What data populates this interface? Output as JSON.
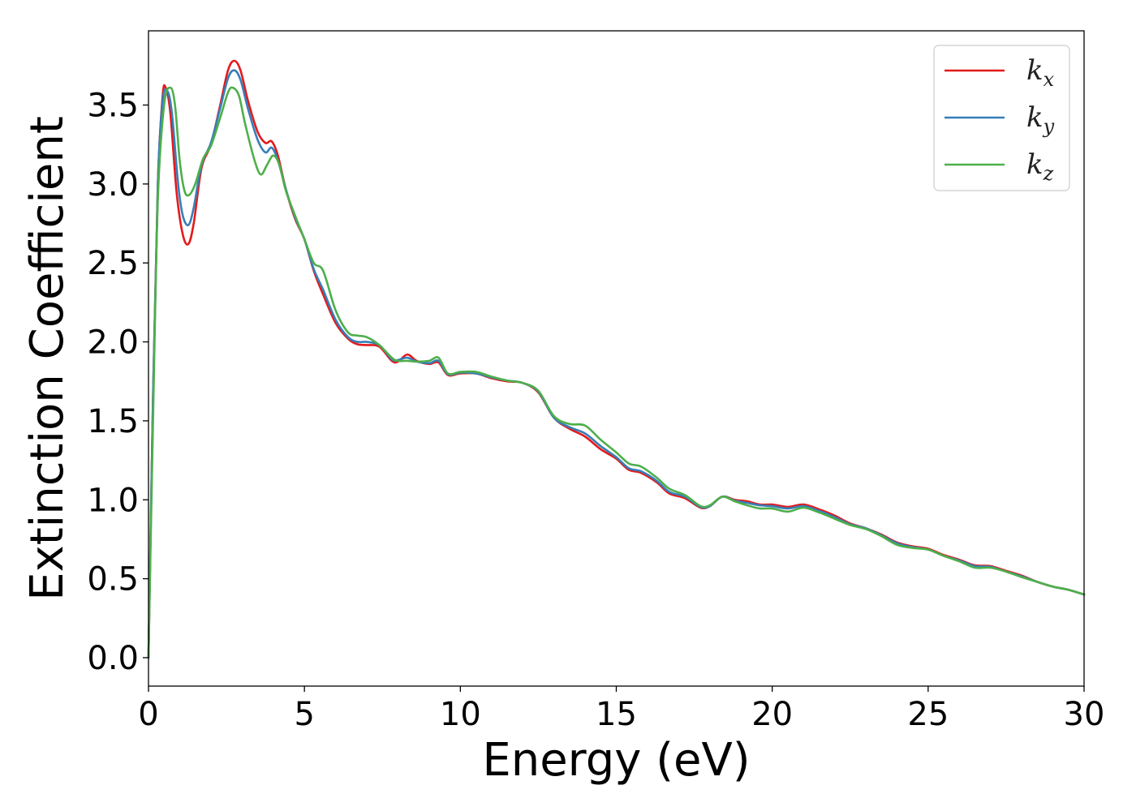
{
  "chart_data": {
    "type": "line",
    "title": "",
    "xlabel": "Energy (eV)",
    "ylabel": "Extinction Coefficient",
    "xlim": [
      0,
      30
    ],
    "ylim": [
      -0.18,
      3.97
    ],
    "xticks": [
      0,
      5,
      10,
      15,
      20,
      25,
      30
    ],
    "xtick_labels": [
      "0",
      "5",
      "10",
      "15",
      "20",
      "25",
      "30"
    ],
    "yticks": [
      0.0,
      0.5,
      1.0,
      1.5,
      2.0,
      2.5,
      3.0,
      3.5
    ],
    "ytick_labels": [
      "0.0",
      "0.5",
      "1.0",
      "1.5",
      "2.0",
      "2.5",
      "3.0",
      "3.5"
    ],
    "grid": false,
    "legend_position": "top-right",
    "series": [
      {
        "name": "k_x",
        "label_base": "k",
        "label_sub": "x",
        "color": "#e41a1c",
        "points": [
          [
            0,
            0.0
          ],
          [
            0.15,
            1.7
          ],
          [
            0.3,
            3.0
          ],
          [
            0.45,
            3.55
          ],
          [
            0.55,
            3.61
          ],
          [
            0.7,
            3.45
          ],
          [
            0.9,
            2.95
          ],
          [
            1.1,
            2.68
          ],
          [
            1.28,
            2.62
          ],
          [
            1.45,
            2.75
          ],
          [
            1.7,
            3.1
          ],
          [
            2.0,
            3.25
          ],
          [
            2.3,
            3.5
          ],
          [
            2.55,
            3.72
          ],
          [
            2.75,
            3.78
          ],
          [
            2.95,
            3.72
          ],
          [
            3.2,
            3.52
          ],
          [
            3.5,
            3.33
          ],
          [
            3.75,
            3.26
          ],
          [
            3.95,
            3.27
          ],
          [
            4.15,
            3.18
          ],
          [
            4.4,
            2.97
          ],
          [
            4.7,
            2.78
          ],
          [
            5.0,
            2.65
          ],
          [
            5.3,
            2.45
          ],
          [
            5.6,
            2.3
          ],
          [
            6.0,
            2.12
          ],
          [
            6.4,
            2.02
          ],
          [
            6.7,
            1.985
          ],
          [
            7.0,
            1.98
          ],
          [
            7.4,
            1.97
          ],
          [
            7.8,
            1.88
          ],
          [
            8.0,
            1.875
          ],
          [
            8.3,
            1.92
          ],
          [
            8.6,
            1.88
          ],
          [
            9.0,
            1.86
          ],
          [
            9.3,
            1.87
          ],
          [
            9.6,
            1.79
          ],
          [
            10.0,
            1.8
          ],
          [
            10.5,
            1.8
          ],
          [
            11.0,
            1.77
          ],
          [
            11.5,
            1.75
          ],
          [
            12.0,
            1.74
          ],
          [
            12.5,
            1.68
          ],
          [
            13.0,
            1.52
          ],
          [
            13.5,
            1.45
          ],
          [
            14.0,
            1.4
          ],
          [
            14.5,
            1.32
          ],
          [
            15.0,
            1.26
          ],
          [
            15.4,
            1.19
          ],
          [
            15.8,
            1.17
          ],
          [
            16.3,
            1.11
          ],
          [
            16.7,
            1.04
          ],
          [
            17.2,
            1.01
          ],
          [
            17.7,
            0.95
          ],
          [
            18.0,
            0.96
          ],
          [
            18.4,
            1.02
          ],
          [
            18.8,
            1.0
          ],
          [
            19.2,
            0.99
          ],
          [
            19.6,
            0.97
          ],
          [
            20.0,
            0.97
          ],
          [
            20.5,
            0.955
          ],
          [
            21.0,
            0.97
          ],
          [
            21.5,
            0.94
          ],
          [
            22.0,
            0.9
          ],
          [
            22.5,
            0.85
          ],
          [
            23.0,
            0.82
          ],
          [
            23.5,
            0.78
          ],
          [
            24.0,
            0.73
          ],
          [
            24.5,
            0.705
          ],
          [
            25.0,
            0.69
          ],
          [
            25.5,
            0.65
          ],
          [
            26.0,
            0.62
          ],
          [
            26.5,
            0.585
          ],
          [
            27.0,
            0.58
          ],
          [
            27.5,
            0.55
          ],
          [
            28.0,
            0.52
          ],
          [
            28.5,
            0.48
          ],
          [
            29.0,
            0.45
          ],
          [
            29.5,
            0.43
          ],
          [
            30.0,
            0.4
          ]
        ]
      },
      {
        "name": "k_y",
        "label_base": "k",
        "label_sub": "y",
        "color": "#377eb8",
        "points": [
          [
            0,
            0.0
          ],
          [
            0.15,
            1.7
          ],
          [
            0.3,
            3.0
          ],
          [
            0.45,
            3.52
          ],
          [
            0.6,
            3.59
          ],
          [
            0.75,
            3.45
          ],
          [
            0.95,
            3.0
          ],
          [
            1.1,
            2.8
          ],
          [
            1.28,
            2.74
          ],
          [
            1.45,
            2.85
          ],
          [
            1.7,
            3.12
          ],
          [
            2.0,
            3.26
          ],
          [
            2.3,
            3.48
          ],
          [
            2.55,
            3.67
          ],
          [
            2.75,
            3.72
          ],
          [
            2.95,
            3.66
          ],
          [
            3.2,
            3.47
          ],
          [
            3.5,
            3.28
          ],
          [
            3.75,
            3.2
          ],
          [
            3.95,
            3.23
          ],
          [
            4.15,
            3.15
          ],
          [
            4.4,
            2.97
          ],
          [
            4.7,
            2.79
          ],
          [
            5.0,
            2.65
          ],
          [
            5.3,
            2.46
          ],
          [
            5.6,
            2.33
          ],
          [
            6.0,
            2.14
          ],
          [
            6.4,
            2.03
          ],
          [
            6.7,
            2.0
          ],
          [
            7.0,
            2.0
          ],
          [
            7.4,
            1.98
          ],
          [
            7.8,
            1.89
          ],
          [
            8.0,
            1.885
          ],
          [
            8.3,
            1.9
          ],
          [
            8.6,
            1.875
          ],
          [
            9.0,
            1.865
          ],
          [
            9.3,
            1.88
          ],
          [
            9.6,
            1.795
          ],
          [
            10.0,
            1.805
          ],
          [
            10.5,
            1.8
          ],
          [
            11.0,
            1.775
          ],
          [
            11.5,
            1.755
          ],
          [
            12.0,
            1.74
          ],
          [
            12.5,
            1.685
          ],
          [
            13.0,
            1.52
          ],
          [
            13.5,
            1.46
          ],
          [
            14.0,
            1.42
          ],
          [
            14.5,
            1.34
          ],
          [
            15.0,
            1.27
          ],
          [
            15.4,
            1.2
          ],
          [
            15.8,
            1.18
          ],
          [
            16.3,
            1.12
          ],
          [
            16.7,
            1.05
          ],
          [
            17.2,
            1.02
          ],
          [
            17.7,
            0.955
          ],
          [
            18.0,
            0.96
          ],
          [
            18.4,
            1.02
          ],
          [
            18.8,
            0.995
          ],
          [
            19.2,
            0.98
          ],
          [
            19.6,
            0.965
          ],
          [
            20.0,
            0.96
          ],
          [
            20.5,
            0.945
          ],
          [
            21.0,
            0.96
          ],
          [
            21.5,
            0.93
          ],
          [
            22.0,
            0.89
          ],
          [
            22.5,
            0.845
          ],
          [
            23.0,
            0.82
          ],
          [
            23.5,
            0.775
          ],
          [
            24.0,
            0.725
          ],
          [
            24.5,
            0.7
          ],
          [
            25.0,
            0.685
          ],
          [
            25.5,
            0.645
          ],
          [
            26.0,
            0.615
          ],
          [
            26.5,
            0.58
          ],
          [
            27.0,
            0.575
          ],
          [
            27.5,
            0.545
          ],
          [
            28.0,
            0.515
          ],
          [
            28.5,
            0.48
          ],
          [
            29.0,
            0.45
          ],
          [
            29.5,
            0.43
          ],
          [
            30.0,
            0.4
          ]
        ]
      },
      {
        "name": "k_z",
        "label_base": "k",
        "label_sub": "z",
        "color": "#4daf4a",
        "points": [
          [
            0,
            0.0
          ],
          [
            0.15,
            1.55
          ],
          [
            0.3,
            2.9
          ],
          [
            0.5,
            3.5
          ],
          [
            0.7,
            3.61
          ],
          [
            0.85,
            3.5
          ],
          [
            1.0,
            3.15
          ],
          [
            1.15,
            2.96
          ],
          [
            1.3,
            2.93
          ],
          [
            1.5,
            3.0
          ],
          [
            1.75,
            3.16
          ],
          [
            2.0,
            3.24
          ],
          [
            2.3,
            3.42
          ],
          [
            2.55,
            3.58
          ],
          [
            2.7,
            3.61
          ],
          [
            2.9,
            3.56
          ],
          [
            3.1,
            3.38
          ],
          [
            3.4,
            3.15
          ],
          [
            3.6,
            3.06
          ],
          [
            3.8,
            3.12
          ],
          [
            4.0,
            3.18
          ],
          [
            4.2,
            3.12
          ],
          [
            4.4,
            2.96
          ],
          [
            4.7,
            2.8
          ],
          [
            5.0,
            2.65
          ],
          [
            5.3,
            2.5
          ],
          [
            5.6,
            2.45
          ],
          [
            6.0,
            2.2
          ],
          [
            6.4,
            2.06
          ],
          [
            6.7,
            2.04
          ],
          [
            7.0,
            2.03
          ],
          [
            7.4,
            1.98
          ],
          [
            7.8,
            1.9
          ],
          [
            8.0,
            1.88
          ],
          [
            8.3,
            1.88
          ],
          [
            8.6,
            1.875
          ],
          [
            9.0,
            1.88
          ],
          [
            9.3,
            1.9
          ],
          [
            9.6,
            1.8
          ],
          [
            10.0,
            1.81
          ],
          [
            10.5,
            1.81
          ],
          [
            11.0,
            1.78
          ],
          [
            11.5,
            1.755
          ],
          [
            12.0,
            1.74
          ],
          [
            12.5,
            1.69
          ],
          [
            13.0,
            1.53
          ],
          [
            13.5,
            1.48
          ],
          [
            14.0,
            1.47
          ],
          [
            14.5,
            1.38
          ],
          [
            15.0,
            1.3
          ],
          [
            15.4,
            1.23
          ],
          [
            15.8,
            1.21
          ],
          [
            16.3,
            1.14
          ],
          [
            16.7,
            1.07
          ],
          [
            17.2,
            1.03
          ],
          [
            17.7,
            0.96
          ],
          [
            18.0,
            0.965
          ],
          [
            18.4,
            1.02
          ],
          [
            18.8,
            0.99
          ],
          [
            19.2,
            0.965
          ],
          [
            19.6,
            0.945
          ],
          [
            20.0,
            0.945
          ],
          [
            20.5,
            0.925
          ],
          [
            21.0,
            0.95
          ],
          [
            21.5,
            0.92
          ],
          [
            22.0,
            0.88
          ],
          [
            22.5,
            0.84
          ],
          [
            23.0,
            0.815
          ],
          [
            23.5,
            0.77
          ],
          [
            24.0,
            0.715
          ],
          [
            24.5,
            0.695
          ],
          [
            25.0,
            0.685
          ],
          [
            25.5,
            0.645
          ],
          [
            26.0,
            0.61
          ],
          [
            26.5,
            0.57
          ],
          [
            27.0,
            0.57
          ],
          [
            27.5,
            0.545
          ],
          [
            28.0,
            0.51
          ],
          [
            28.5,
            0.48
          ],
          [
            29.0,
            0.45
          ],
          [
            29.5,
            0.43
          ],
          [
            30.0,
            0.4
          ]
        ]
      }
    ]
  }
}
